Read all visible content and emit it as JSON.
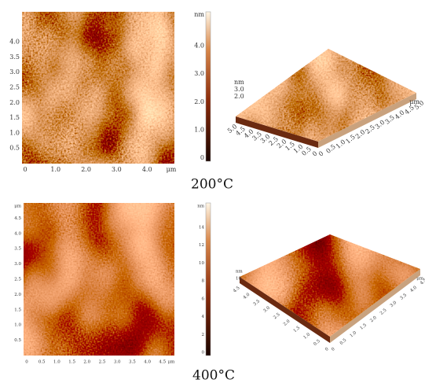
{
  "panels": [
    {
      "caption": "200°C",
      "map": {
        "y_ticks": [
          "0.5",
          "1.0",
          "1.5",
          "2.0",
          "2.5",
          "3.0",
          "3.5",
          "4.0"
        ],
        "x_ticks": [
          "0",
          "1.0",
          "2.0",
          "3.0",
          "4.0"
        ],
        "x_unit": "μm"
      },
      "colorbar": {
        "unit": "nm",
        "ticks": [
          "0",
          "1.0",
          "2.0",
          "3.0",
          "4.0"
        ]
      },
      "surface": {
        "z_unit": "nm",
        "z_ticks": [
          "3.0",
          "2.0"
        ],
        "left_ticks": [
          "5.0",
          "4.5",
          "4.0",
          "3.5",
          "3.0",
          "2.5",
          "2.0",
          "1.5",
          "1.0",
          "0.5",
          "0"
        ],
        "right_ticks": [
          "0",
          "0.5",
          "1.0",
          "1.5",
          "2.0",
          "2.5",
          "3.0",
          "3.5",
          "4.0",
          "4.5",
          "5.0"
        ],
        "unit": "μm"
      }
    },
    {
      "caption": "400°C",
      "map": {
        "y_unit": "μm",
        "y_ticks": [
          "0.5",
          "1.0",
          "1.5",
          "2.0",
          "2.5",
          "3.0",
          "3.5",
          "4.0",
          "4.5"
        ],
        "x_ticks": [
          "0",
          "0.5",
          "1.0",
          "1.5",
          "2.0",
          "2.5",
          "3.0",
          "3.5",
          "4.0",
          "4.5"
        ],
        "x_unit": "μm"
      },
      "colorbar": {
        "unit": "nm",
        "ticks": [
          "0",
          "2",
          "4",
          "6",
          "8",
          "10",
          "12",
          "14"
        ]
      },
      "surface": {
        "z_unit": "nm",
        "z_ticks": [
          "10"
        ],
        "left_ticks": [
          "4.5",
          "4.0",
          "3.5",
          "3.0",
          "2.5",
          "2.0",
          "1.5",
          "1.0",
          "0.5",
          "0"
        ],
        "right_ticks": [
          "0",
          "0.5",
          "1.0",
          "1.5",
          "2.0",
          "2.5",
          "3.0",
          "3.5",
          "4.0",
          "4.5"
        ],
        "unit": "μm"
      }
    }
  ]
}
